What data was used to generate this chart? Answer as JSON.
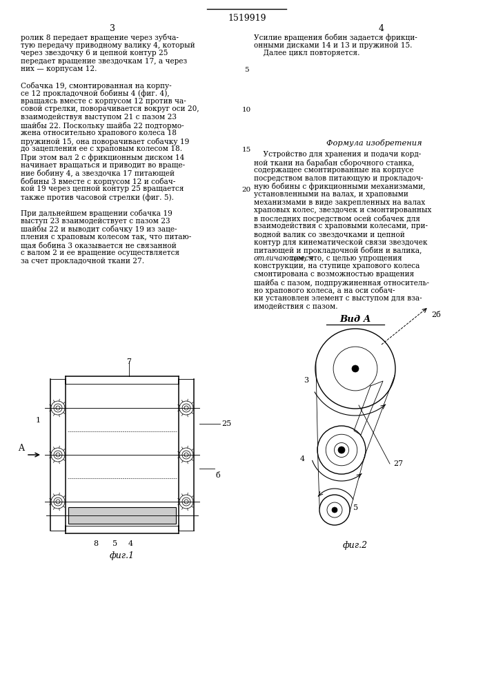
{
  "page_width": 7.07,
  "page_height": 10.0,
  "background": "#ffffff",
  "patent_number": "1519919",
  "col_left_number": "3",
  "col_right_number": "4",
  "left_text": [
    "ролик 8 передает вращение через зубча-",
    "тую передачу приводному валику 4, который",
    "через звездочку 6 и цепной контур 25",
    "передает вращение звездочкам 17, а через",
    "них — корпусам 12.",
    "",
    "Собачка 19, смонтированная на корпу-",
    "се 12 прокладочной бобины 4 (фиг. 4),",
    "вращаясь вместе с корпусом 12 против ча-",
    "совой стрелки, поворачивается вокруг оси 20,",
    "взаимодействуя выступом 21 с пазом 23",
    "шайбы 22. Поскольку шайба 22 подтормо-",
    "жена относительно храпового колеса 18",
    "пружиной 15, она поворачивает собачку 19",
    "до зацепления ее с храповым колесом 18.",
    "При этом вал 2 с фрикционным диском 14",
    "начинает вращаться и приводит во враще-",
    "ние бобину 4, а звездочка 17 питающей",
    "бобины 3 вместе с корпусом 12 и собач-",
    "кой 19 через цепной контур 25 вращается",
    "также против часовой стрелки (фиг. 5).",
    "",
    "При дальнейшем вращении собачка 19",
    "выступ 23 взаимодействует с пазом 23",
    "шайбы 22 и выводит собачку 19 из заце-",
    "пления с храповым колесом так, что питаю-",
    "щая бобина 3 оказывается не связанной",
    "с валом 2 и ее вращение осуществляется",
    "за счет прокладочной ткани 27."
  ],
  "right_text_top": [
    "Усилие вращения бобин задается фрикци-",
    "онными дисками 14 и 13 и пружиной 15.",
    "    Далее цикл повторяется."
  ],
  "formula_title": "Формула изобретения",
  "formula_text": [
    "    Устройство для хранения и подачи корд-",
    "ной ткани на барабан сборочного станка,",
    "содержащее смонтированные на корпусе",
    "посредством валов питающую и прокладоч-",
    "ную бобины с фрикционными механизмами,",
    "установленными на валах, и храповыми",
    "механизмами в виде закрепленных на валах",
    "храповых колес, звездочек и смонтированных",
    "в последних посредством осей собачек для",
    "взаимодействия с храповыми колесами, при-",
    "водной валик со звездочками и цепной",
    "контур для кинематической связи звездочек",
    "питающей и прокладочной бобин и валика,",
    "отличающееся тем, что, с целью упрощения",
    "конструкции, на ступице храпового колеса",
    "смонтирована с возможностью вращения",
    "шайба с пазом, подпружиненная относитель-",
    "но храпового колеса, а на оси собач-",
    "ки установлен элемент с выступом для вза-",
    "имодействия с пазом."
  ],
  "vid_a_label": "Вид А",
  "fig1_label": "фиг.1",
  "fig2_label": "фиг.2"
}
